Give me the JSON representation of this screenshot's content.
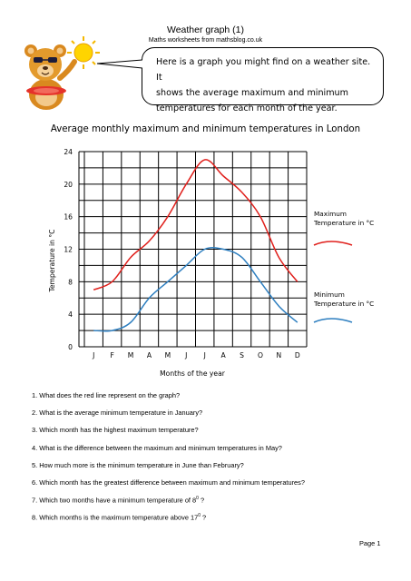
{
  "header": {
    "title": "Weather graph (1)",
    "subtitle": "Maths worksheets from mathsblog.co.uk"
  },
  "bubble": {
    "line1": "Here is a graph you might find on a weather site. It",
    "line2": "shows the average maximum and minimum",
    "line3": "temperatures for each month of the year."
  },
  "mascot": {
    "icon": "bear-with-sun-icon"
  },
  "chart_data": {
    "type": "line",
    "title": "Average monthly maximum and minimum temperatures in London",
    "xlabel": "Months of the year",
    "ylabel": "Temperature in °C",
    "categories": [
      "J",
      "F",
      "M",
      "A",
      "M",
      "J",
      "J",
      "A",
      "S",
      "O",
      "N",
      "D"
    ],
    "ylim": [
      0,
      24
    ],
    "yticks": [
      0,
      4,
      8,
      12,
      16,
      20,
      24
    ],
    "yticks_labels": [
      "0",
      "4",
      "8",
      "12",
      "16",
      "20",
      "24"
    ],
    "grid": true,
    "legend_position": "right",
    "series": [
      {
        "name": "Maximum Temperature in °C",
        "color": "#e0201c",
        "values": [
          7,
          8,
          11,
          13,
          16,
          20,
          23,
          21,
          19,
          16,
          11,
          8
        ]
      },
      {
        "name": "Minimum Temperature in °C",
        "color": "#2e7fc0",
        "values": [
          2,
          2,
          3,
          6,
          8,
          10,
          12,
          12,
          11,
          8,
          5,
          3
        ]
      }
    ]
  },
  "legend": {
    "max_line1": "Maximum",
    "max_line2": "Temperature in °C",
    "min_line1": "Minimum",
    "min_line2": "Temperature in °C"
  },
  "questions": [
    "1. What does the red line represent on the graph?",
    "2. What is the average minimum temperature in January?",
    "3. Which month has the highest maximum temperature?",
    "4. What is the difference between the maximum and minimum temperatures in May?",
    "5. How much more is the minimum temperature in June than February?",
    "6. Which month has the greatest difference between maximum and minimum temperatures?"
  ],
  "q7": {
    "before": "7. Which two months have a minimum temperature of 8",
    "sup": "0",
    "after": " ?"
  },
  "q8": {
    "before": "8. Which months is the maximum temperature above 17",
    "sup": "0",
    "after": " ?"
  },
  "footer": {
    "page": "Page 1"
  }
}
